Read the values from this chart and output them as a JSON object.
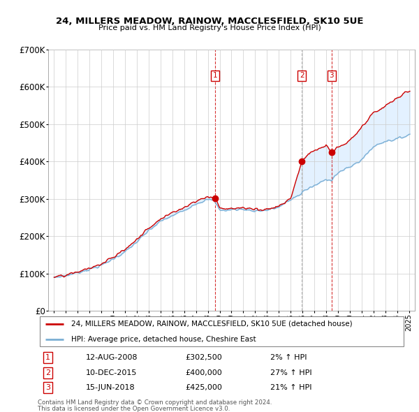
{
  "title": "24, MILLERS MEADOW, RAINOW, MACCLESFIELD, SK10 5UE",
  "subtitle": "Price paid vs. HM Land Registry's House Price Index (HPI)",
  "house_label": "24, MILLERS MEADOW, RAINOW, MACCLESFIELD, SK10 5UE (detached house)",
  "hpi_label": "HPI: Average price, detached house, Cheshire East",
  "house_color": "#cc0000",
  "hpi_color": "#7bafd4",
  "fill_color": "#ddeeff",
  "transactions": [
    {
      "num": 1,
      "date": "12-AUG-2008",
      "price": "£302,500",
      "change": "2% ↑ HPI",
      "year": 2008.62,
      "price_val": 302500,
      "line_style": "dashed_red"
    },
    {
      "num": 2,
      "date": "10-DEC-2015",
      "price": "£400,000",
      "change": "27% ↑ HPI",
      "year": 2015.94,
      "price_val": 400000,
      "line_style": "dashed_grey"
    },
    {
      "num": 3,
      "date": "15-JUN-2018",
      "price": "£425,000",
      "change": "21% ↑ HPI",
      "year": 2018.46,
      "price_val": 425000,
      "line_style": "dashed_red"
    }
  ],
  "footer1": "Contains HM Land Registry data © Crown copyright and database right 2024.",
  "footer2": "This data is licensed under the Open Government Licence v3.0.",
  "ylim": [
    0,
    700000
  ],
  "yticks": [
    0,
    100000,
    200000,
    300000,
    400000,
    500000,
    600000,
    700000
  ],
  "ytick_labels": [
    "£0",
    "£100K",
    "£200K",
    "£300K",
    "£400K",
    "£500K",
    "£600K",
    "£700K"
  ],
  "xlim_start": 1994.5,
  "xlim_end": 2025.5
}
